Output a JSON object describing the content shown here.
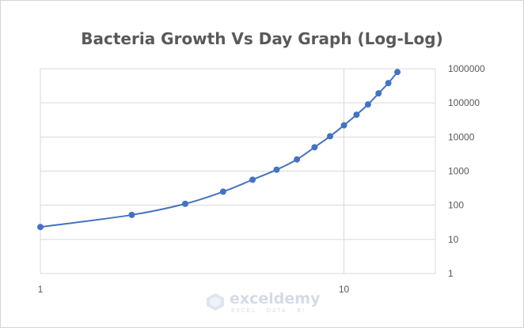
{
  "chart_data": {
    "type": "scatter",
    "title": "Bacteria Growth Vs Day Graph (Log-Log)",
    "xscale": "log",
    "yscale": "log",
    "xlim": [
      1,
      20
    ],
    "ylim": [
      1,
      1000000
    ],
    "x_ticks": [
      "1",
      "10"
    ],
    "y_ticks": [
      "1",
      "10",
      "100",
      "1000",
      "10000",
      "100000",
      "1000000"
    ],
    "y_axis_side": "right",
    "grid": {
      "horizontal": true,
      "vertical": true
    },
    "legend": "none",
    "marker_color": "#4472C4",
    "line_color": "#4472C4",
    "smooth_line": true,
    "series": [
      {
        "x": [
          1,
          2,
          3,
          4,
          5,
          6,
          7,
          8,
          9,
          10,
          11,
          12,
          13,
          14,
          15
        ],
        "values": [
          23,
          52,
          110,
          250,
          560,
          1100,
          2200,
          5000,
          10500,
          22000,
          45000,
          90000,
          190000,
          380000,
          800000
        ]
      }
    ]
  },
  "watermark": {
    "name": "exceldemy",
    "tagline": "EXCEL · DATA · BI"
  }
}
